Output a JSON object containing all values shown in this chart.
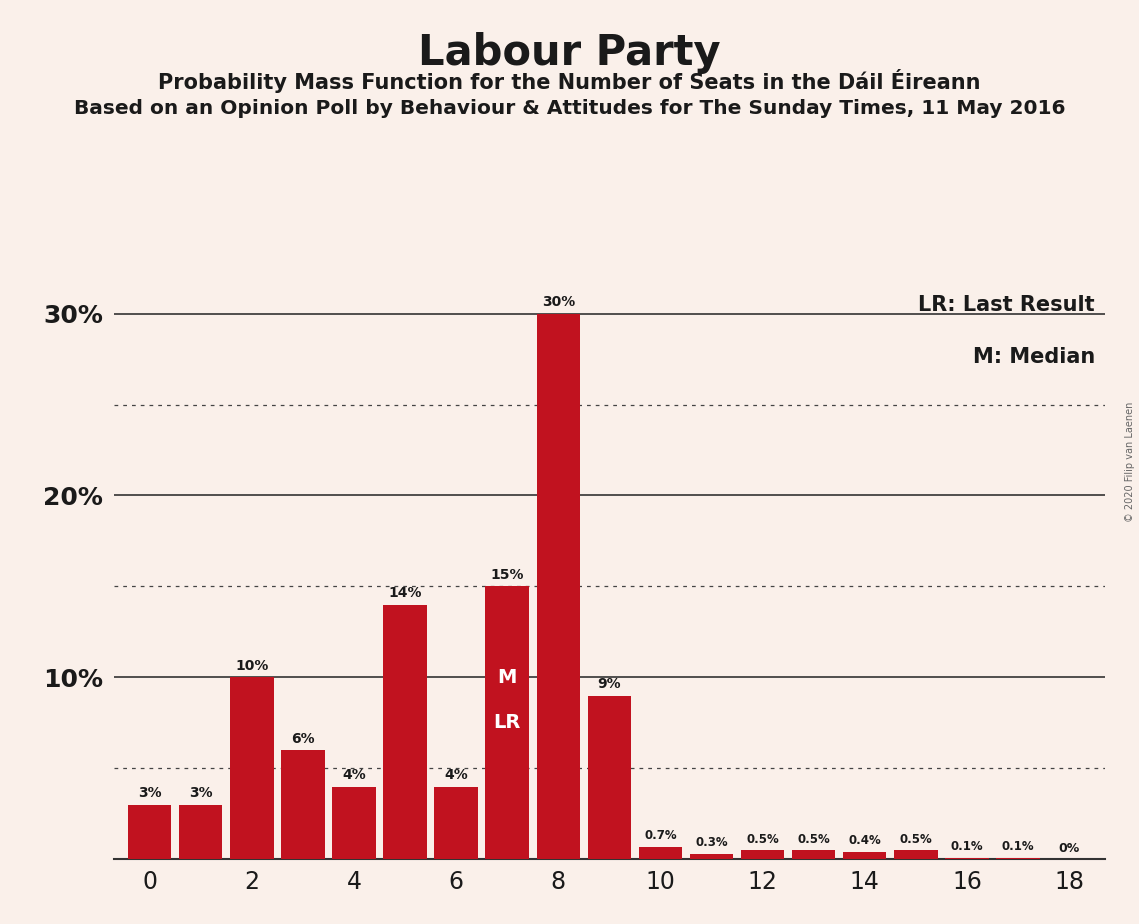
{
  "title": "Labour Party",
  "subtitle1": "Probability Mass Function for the Number of Seats in the Dáil Éireann",
  "subtitle2": "Based on an Opinion Poll by Behaviour & Attitudes for The Sunday Times, 11 May 2016",
  "copyright": "© 2020 Filip van Laenen",
  "seats": [
    0,
    1,
    2,
    3,
    4,
    5,
    6,
    7,
    8,
    9,
    10,
    11,
    12,
    13,
    14,
    15,
    16,
    17,
    18
  ],
  "probabilities": [
    3,
    3,
    10,
    6,
    4,
    14,
    4,
    15,
    30,
    9,
    0.7,
    0.3,
    0.5,
    0.5,
    0.4,
    0.5,
    0.1,
    0.1,
    0
  ],
  "bar_color": "#C1121F",
  "background_color": "#FAF0EA",
  "text_color": "#1a1a1a",
  "ylim": [
    0,
    32
  ],
  "xlim": [
    -0.7,
    18.7
  ],
  "dotted_lines": [
    5,
    15,
    25
  ],
  "solid_lines": [
    10,
    20,
    30
  ],
  "lr_seat": 7,
  "median_seat": 7,
  "legend_lr": "LR: Last Result",
  "legend_m": "M: Median",
  "xlabel_ticks": [
    0,
    2,
    4,
    6,
    8,
    10,
    12,
    14,
    16,
    18
  ],
  "ytick_positions": [
    10,
    20,
    30
  ],
  "ytick_labels": [
    "10%",
    "20%",
    "30%"
  ]
}
